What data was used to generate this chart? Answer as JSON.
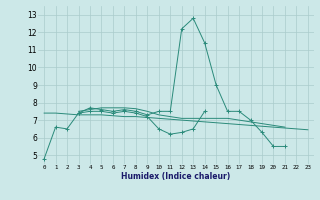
{
  "x": [
    0,
    1,
    2,
    3,
    4,
    5,
    6,
    7,
    8,
    9,
    10,
    11,
    12,
    13,
    14,
    15,
    16,
    17,
    18,
    19,
    20,
    21,
    22,
    23
  ],
  "series_main": [
    4.8,
    6.6,
    6.5,
    7.4,
    7.7,
    7.6,
    7.5,
    7.6,
    7.5,
    7.3,
    7.5,
    7.5,
    12.2,
    12.8,
    11.4,
    9.0,
    7.5,
    7.5,
    7.0,
    6.3,
    5.5,
    5.5,
    null,
    null
  ],
  "series_low": [
    null,
    null,
    null,
    7.4,
    7.5,
    7.5,
    7.4,
    7.5,
    7.4,
    7.2,
    6.5,
    6.2,
    6.3,
    6.5,
    7.5,
    null,
    null,
    null,
    null,
    null,
    null,
    null,
    null,
    null
  ],
  "series_flat1": [
    7.4,
    7.4,
    7.35,
    7.3,
    7.3,
    7.3,
    7.25,
    7.2,
    7.2,
    7.15,
    7.1,
    7.05,
    7.0,
    6.95,
    6.9,
    6.85,
    6.8,
    6.75,
    6.7,
    6.65,
    6.6,
    6.55,
    6.5,
    6.45
  ],
  "series_flat2": [
    null,
    null,
    null,
    7.5,
    7.6,
    7.7,
    7.7,
    7.7,
    7.65,
    7.5,
    7.3,
    7.2,
    7.1,
    7.1,
    7.1,
    7.1,
    7.1,
    7.0,
    6.9,
    6.8,
    6.7,
    6.6,
    null,
    null
  ],
  "line_color": "#2a8a7a",
  "bg_color": "#cce8e8",
  "grid_color": "#aacccc",
  "ylabel_vals": [
    5,
    6,
    7,
    8,
    9,
    10,
    11,
    12,
    13
  ],
  "xlabel": "Humidex (Indice chaleur)",
  "xlim": [
    -0.5,
    23.5
  ],
  "ylim": [
    4.5,
    13.5
  ]
}
